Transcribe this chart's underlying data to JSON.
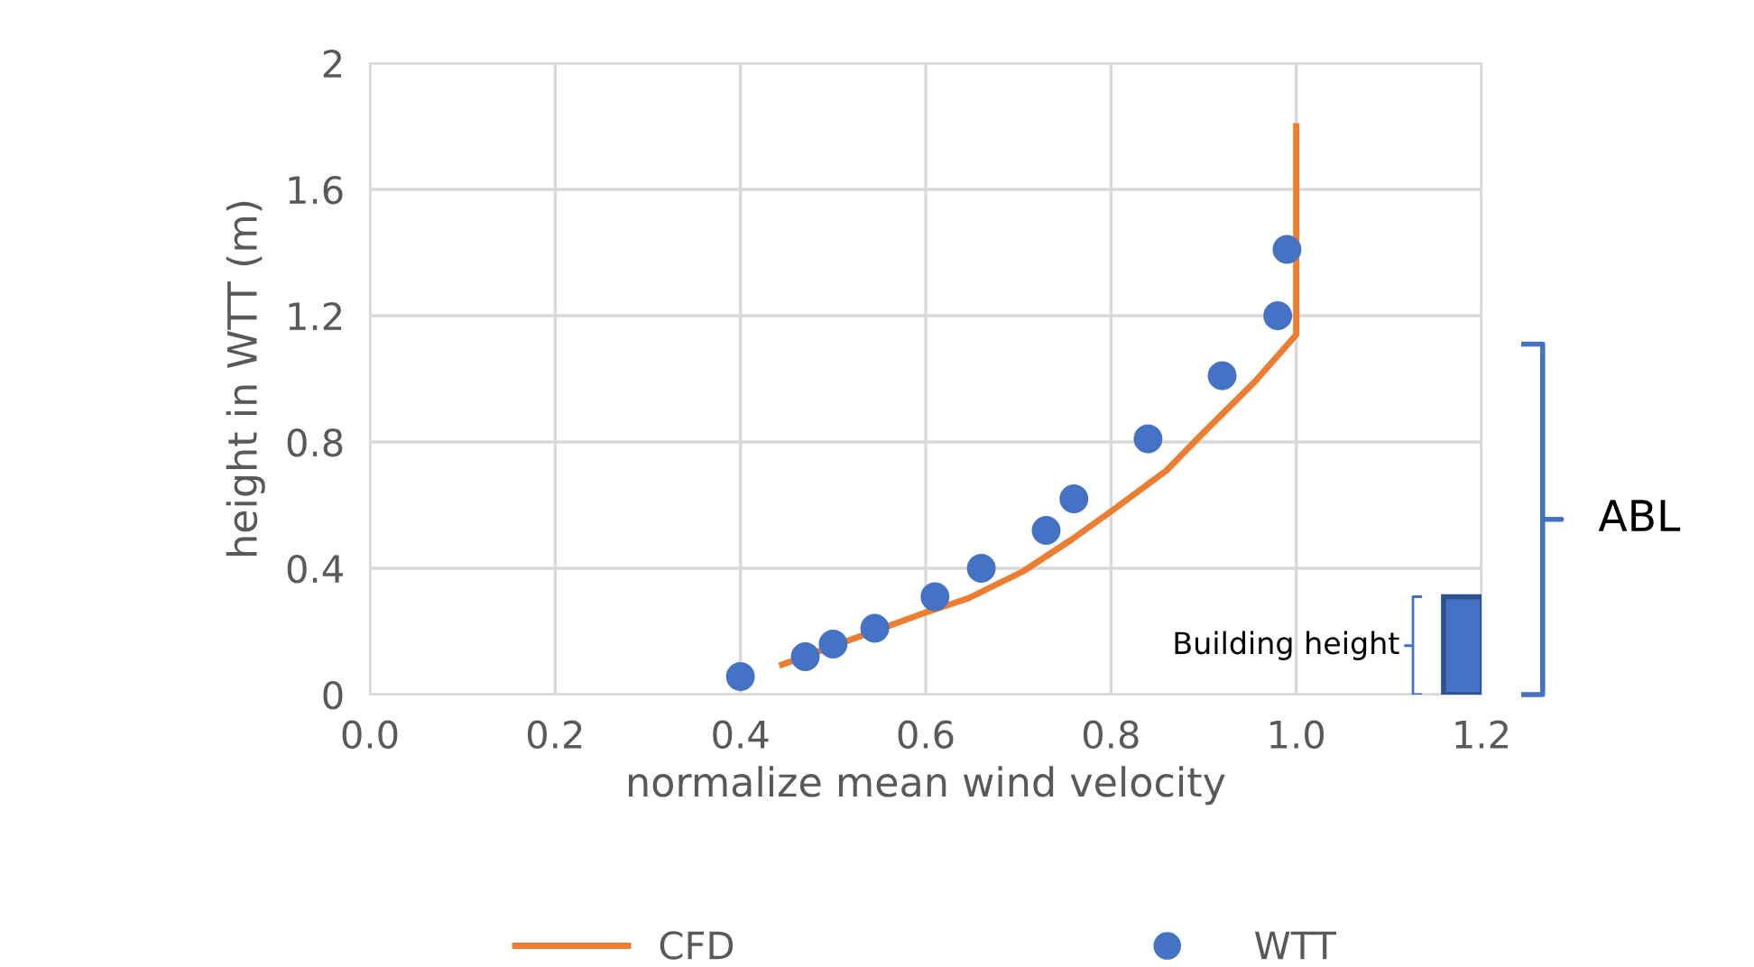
{
  "chart_data": {
    "type": "scatter",
    "xlabel": "normalize mean wind velocity",
    "ylabel": "height in WTT (m)",
    "series": [
      {
        "name": "CFD",
        "type": "line",
        "color": "#ed7d31",
        "marker": "none",
        "x": [
          0.445,
          0.6,
          0.646,
          0.705,
          0.757,
          0.8,
          0.86,
          0.9,
          0.955,
          1.0,
          1.0
        ],
        "values": [
          0.095,
          0.26,
          0.305,
          0.39,
          0.49,
          0.58,
          0.71,
          0.83,
          0.99,
          1.14,
          1.8
        ]
      },
      {
        "name": "WTT",
        "color": "#4472c4",
        "marker": "circle",
        "x": [
          0.4,
          0.47,
          0.5,
          0.545,
          0.61,
          0.66,
          0.73,
          0.76,
          0.84,
          0.92,
          0.98,
          0.99
        ],
        "values": [
          0.057,
          0.12,
          0.16,
          0.21,
          0.31,
          0.4,
          0.52,
          0.62,
          0.81,
          1.01,
          1.2,
          1.41
        ]
      },
      {
        "type": "bar",
        "color": "#4472c4",
        "x": [
          1.18
        ],
        "values": [
          0.31
        ]
      }
    ],
    "xlim": [
      0,
      1.2
    ],
    "xticks": [
      {
        "value": 0,
        "label": "0.0"
      },
      {
        "value": 0.2,
        "label": "0.2"
      },
      {
        "value": 0.4,
        "label": "0.4"
      },
      {
        "value": 0.6,
        "label": "0.6"
      },
      {
        "value": 0.8,
        "label": "0.8"
      },
      {
        "value": 1,
        "label": "1.0"
      },
      {
        "value": 1.2,
        "label": "1.2"
      }
    ],
    "ylim": [
      0,
      2
    ],
    "yticks": [
      0,
      0.4,
      0.8,
      1.2,
      1.6,
      2
    ],
    "grid": true,
    "legend": "bottom",
    "annotations": [
      "Building height",
      "ABL"
    ]
  }
}
